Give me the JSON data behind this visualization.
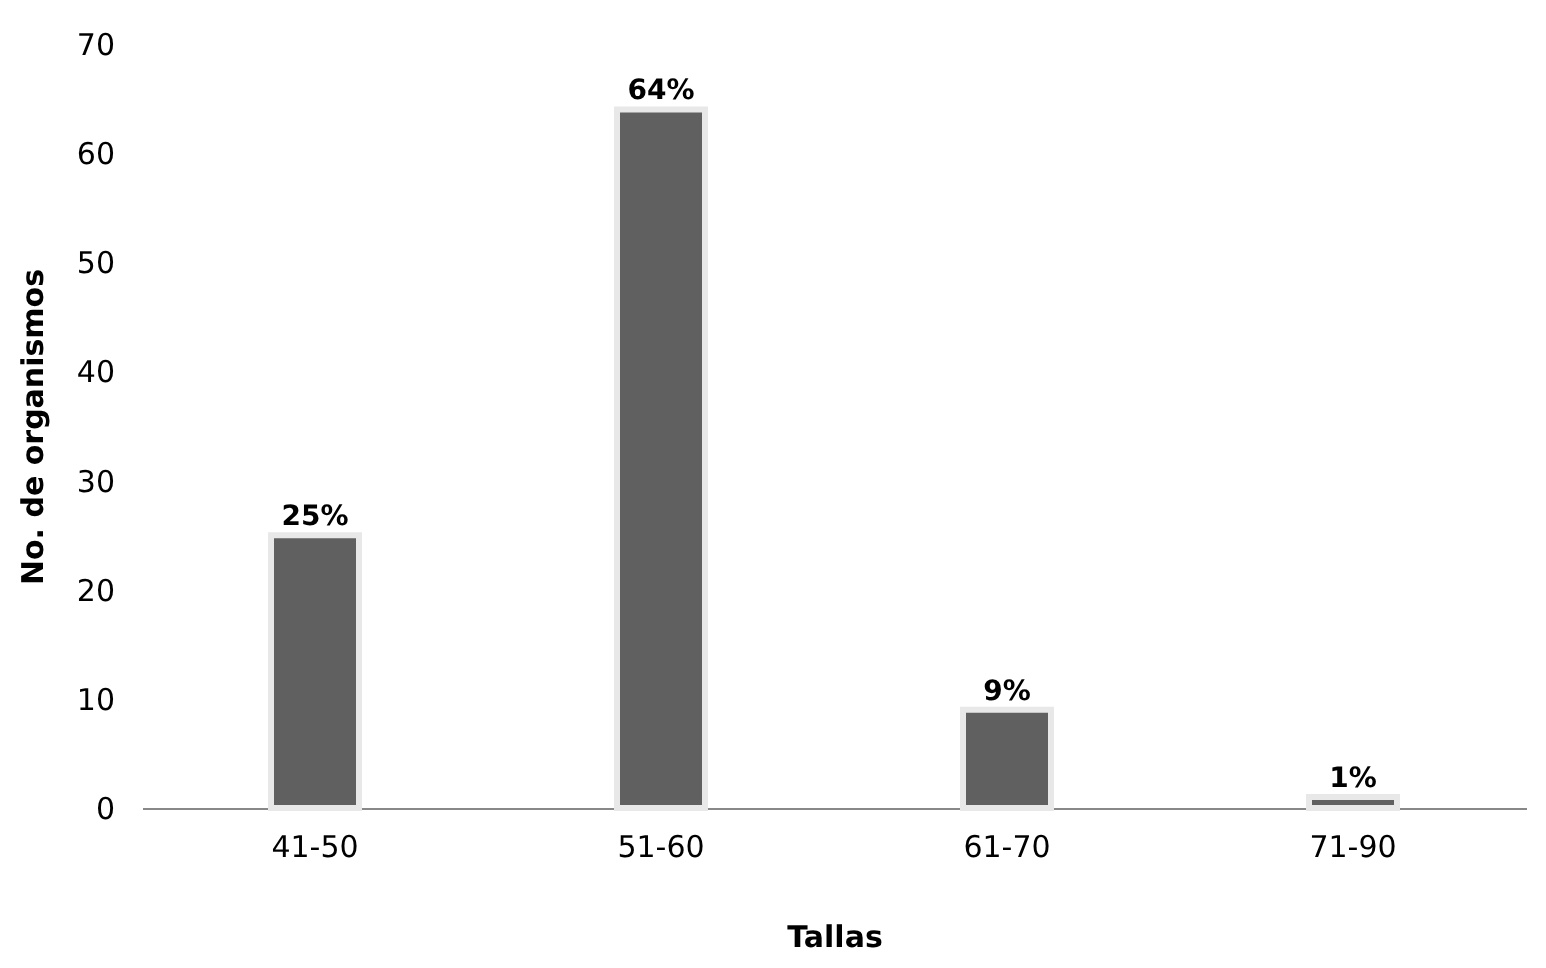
{
  "chart_data": {
    "type": "bar",
    "xlabel": "Tallas",
    "ylabel": "No. de organismos",
    "categories": [
      "41-50",
      "51-60",
      "61-70",
      "71-90"
    ],
    "values": [
      25,
      64,
      9,
      1
    ],
    "value_labels": [
      "25%",
      "64%",
      "9%",
      "1%"
    ],
    "color": "#606060",
    "ylim": [
      0,
      70
    ],
    "yticks": [
      0,
      10,
      20,
      30,
      40,
      50,
      60,
      70
    ],
    "grid": false
  }
}
